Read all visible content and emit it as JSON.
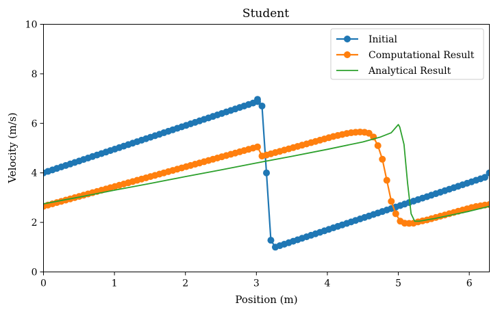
{
  "chart_data": {
    "type": "line",
    "title": "Student",
    "xlabel": "Position (m)",
    "ylabel": "Velocity (m/s)",
    "xlim": [
      0,
      6.2832
    ],
    "ylim": [
      0,
      10
    ],
    "xticks": [
      "0",
      "1",
      "2",
      "3",
      "4",
      "5",
      "6"
    ],
    "yticks": [
      "0",
      "2",
      "4",
      "6",
      "8",
      "10"
    ],
    "legend_position": "top-right",
    "grid": false,
    "series": [
      {
        "name": "Initial",
        "color": "#1f77b4",
        "marker": "circle",
        "description": "sawtooth: linear 4 to 7 over x in [0, 3.05], sharp drop near x=3.1-3.25 to 1, linear 1 to 4 over x in [3.25, 6.28]",
        "points": [
          [
            0,
            4.0
          ],
          [
            0.063,
            4.06
          ],
          [
            0.126,
            4.12
          ],
          [
            0.188,
            4.18
          ],
          [
            0.251,
            4.24
          ],
          [
            0.314,
            4.3
          ],
          [
            0.377,
            4.36
          ],
          [
            0.44,
            4.42
          ],
          [
            0.503,
            4.48
          ],
          [
            0.565,
            4.54
          ],
          [
            0.628,
            4.6
          ],
          [
            0.691,
            4.66
          ],
          [
            0.754,
            4.72
          ],
          [
            0.817,
            4.78
          ],
          [
            0.88,
            4.84
          ],
          [
            0.942,
            4.9
          ],
          [
            1.005,
            4.96
          ],
          [
            1.068,
            5.02
          ],
          [
            1.131,
            5.08
          ],
          [
            1.194,
            5.14
          ],
          [
            1.257,
            5.2
          ],
          [
            1.319,
            5.26
          ],
          [
            1.382,
            5.32
          ],
          [
            1.445,
            5.38
          ],
          [
            1.508,
            5.44
          ],
          [
            1.571,
            5.5
          ],
          [
            1.634,
            5.56
          ],
          [
            1.696,
            5.62
          ],
          [
            1.759,
            5.68
          ],
          [
            1.822,
            5.74
          ],
          [
            1.885,
            5.8
          ],
          [
            1.948,
            5.86
          ],
          [
            2.011,
            5.92
          ],
          [
            2.073,
            5.98
          ],
          [
            2.136,
            6.04
          ],
          [
            2.199,
            6.1
          ],
          [
            2.262,
            6.16
          ],
          [
            2.325,
            6.22
          ],
          [
            2.388,
            6.28
          ],
          [
            2.45,
            6.34
          ],
          [
            2.513,
            6.4
          ],
          [
            2.576,
            6.46
          ],
          [
            2.639,
            6.52
          ],
          [
            2.702,
            6.58
          ],
          [
            2.765,
            6.64
          ],
          [
            2.827,
            6.7
          ],
          [
            2.89,
            6.76
          ],
          [
            2.953,
            6.82
          ],
          [
            3.016,
            6.88
          ],
          [
            3.016,
            6.97
          ],
          [
            3.079,
            6.7
          ],
          [
            3.142,
            4.0
          ],
          [
            3.204,
            1.28
          ],
          [
            3.267,
            1.0
          ],
          [
            3.33,
            1.06
          ],
          [
            3.393,
            1.12
          ],
          [
            3.456,
            1.18
          ],
          [
            3.519,
            1.24
          ],
          [
            3.581,
            1.3
          ],
          [
            3.644,
            1.36
          ],
          [
            3.707,
            1.42
          ],
          [
            3.77,
            1.48
          ],
          [
            3.833,
            1.54
          ],
          [
            3.896,
            1.6
          ],
          [
            3.958,
            1.66
          ],
          [
            4.021,
            1.72
          ],
          [
            4.084,
            1.78
          ],
          [
            4.147,
            1.84
          ],
          [
            4.21,
            1.9
          ],
          [
            4.273,
            1.96
          ],
          [
            4.335,
            2.02
          ],
          [
            4.398,
            2.08
          ],
          [
            4.461,
            2.14
          ],
          [
            4.524,
            2.2
          ],
          [
            4.587,
            2.26
          ],
          [
            4.65,
            2.32
          ],
          [
            4.712,
            2.38
          ],
          [
            4.775,
            2.44
          ],
          [
            4.838,
            2.5
          ],
          [
            4.901,
            2.56
          ],
          [
            4.964,
            2.62
          ],
          [
            5.027,
            2.68
          ],
          [
            5.089,
            2.74
          ],
          [
            5.152,
            2.8
          ],
          [
            5.215,
            2.86
          ],
          [
            5.278,
            2.92
          ],
          [
            5.341,
            2.98
          ],
          [
            5.404,
            3.04
          ],
          [
            5.466,
            3.1
          ],
          [
            5.529,
            3.16
          ],
          [
            5.592,
            3.22
          ],
          [
            5.655,
            3.28
          ],
          [
            5.718,
            3.34
          ],
          [
            5.781,
            3.4
          ],
          [
            5.843,
            3.46
          ],
          [
            5.906,
            3.52
          ],
          [
            5.969,
            3.58
          ],
          [
            6.032,
            3.64
          ],
          [
            6.095,
            3.7
          ],
          [
            6.158,
            3.76
          ],
          [
            6.22,
            3.82
          ],
          [
            6.283,
            4.0
          ]
        ]
      },
      {
        "name": "Computational Result",
        "color": "#ff7f0e",
        "marker": "circle",
        "points": [
          [
            0,
            2.65
          ],
          [
            0.063,
            2.7
          ],
          [
            0.126,
            2.75
          ],
          [
            0.188,
            2.8
          ],
          [
            0.251,
            2.85
          ],
          [
            0.314,
            2.9
          ],
          [
            0.377,
            2.95
          ],
          [
            0.44,
            3.0
          ],
          [
            0.503,
            3.05
          ],
          [
            0.565,
            3.1
          ],
          [
            0.628,
            3.15
          ],
          [
            0.691,
            3.2
          ],
          [
            0.754,
            3.25
          ],
          [
            0.817,
            3.3
          ],
          [
            0.88,
            3.35
          ],
          [
            0.942,
            3.4
          ],
          [
            1.005,
            3.45
          ],
          [
            1.068,
            3.5
          ],
          [
            1.131,
            3.55
          ],
          [
            1.194,
            3.6
          ],
          [
            1.257,
            3.65
          ],
          [
            1.319,
            3.7
          ],
          [
            1.382,
            3.75
          ],
          [
            1.445,
            3.8
          ],
          [
            1.508,
            3.85
          ],
          [
            1.571,
            3.9
          ],
          [
            1.634,
            3.95
          ],
          [
            1.696,
            4.0
          ],
          [
            1.759,
            4.05
          ],
          [
            1.822,
            4.1
          ],
          [
            1.885,
            4.15
          ],
          [
            1.948,
            4.2
          ],
          [
            2.011,
            4.25
          ],
          [
            2.073,
            4.3
          ],
          [
            2.136,
            4.35
          ],
          [
            2.199,
            4.4
          ],
          [
            2.262,
            4.45
          ],
          [
            2.325,
            4.5
          ],
          [
            2.388,
            4.55
          ],
          [
            2.45,
            4.6
          ],
          [
            2.513,
            4.65
          ],
          [
            2.576,
            4.7
          ],
          [
            2.639,
            4.75
          ],
          [
            2.702,
            4.8
          ],
          [
            2.765,
            4.85
          ],
          [
            2.827,
            4.9
          ],
          [
            2.89,
            4.95
          ],
          [
            2.953,
            5.0
          ],
          [
            3.016,
            5.05
          ],
          [
            3.079,
            4.68
          ],
          [
            3.142,
            4.72
          ],
          [
            3.204,
            4.77
          ],
          [
            3.267,
            4.82
          ],
          [
            3.33,
            4.87
          ],
          [
            3.393,
            4.92
          ],
          [
            3.456,
            4.97
          ],
          [
            3.519,
            5.02
          ],
          [
            3.581,
            5.07
          ],
          [
            3.644,
            5.12
          ],
          [
            3.707,
            5.17
          ],
          [
            3.77,
            5.22
          ],
          [
            3.833,
            5.27
          ],
          [
            3.896,
            5.32
          ],
          [
            3.958,
            5.37
          ],
          [
            4.021,
            5.42
          ],
          [
            4.084,
            5.47
          ],
          [
            4.147,
            5.51
          ],
          [
            4.21,
            5.55
          ],
          [
            4.273,
            5.59
          ],
          [
            4.335,
            5.62
          ],
          [
            4.398,
            5.64
          ],
          [
            4.461,
            5.65
          ],
          [
            4.524,
            5.64
          ],
          [
            4.587,
            5.6
          ],
          [
            4.65,
            5.45
          ],
          [
            4.712,
            5.1
          ],
          [
            4.775,
            4.55
          ],
          [
            4.838,
            3.7
          ],
          [
            4.901,
            2.85
          ],
          [
            4.964,
            2.35
          ],
          [
            5.027,
            2.05
          ],
          [
            5.089,
            1.97
          ],
          [
            5.152,
            1.96
          ],
          [
            5.215,
            1.97
          ],
          [
            5.278,
            2.02
          ],
          [
            5.341,
            2.06
          ],
          [
            5.404,
            2.1
          ],
          [
            5.466,
            2.15
          ],
          [
            5.529,
            2.2
          ],
          [
            5.592,
            2.25
          ],
          [
            5.655,
            2.3
          ],
          [
            5.718,
            2.35
          ],
          [
            5.781,
            2.4
          ],
          [
            5.843,
            2.45
          ],
          [
            5.906,
            2.5
          ],
          [
            5.969,
            2.55
          ],
          [
            6.032,
            2.6
          ],
          [
            6.095,
            2.64
          ],
          [
            6.158,
            2.67
          ],
          [
            6.22,
            2.7
          ],
          [
            6.283,
            2.72
          ]
        ]
      },
      {
        "name": "Analytical Result",
        "color": "#2ca02c",
        "marker": "none",
        "points": [
          [
            0,
            2.75
          ],
          [
            0.5,
            3.02
          ],
          [
            1.0,
            3.3
          ],
          [
            1.5,
            3.57
          ],
          [
            2.0,
            3.85
          ],
          [
            2.5,
            4.12
          ],
          [
            3.0,
            4.4
          ],
          [
            3.5,
            4.67
          ],
          [
            4.0,
            4.95
          ],
          [
            4.5,
            5.25
          ],
          [
            4.75,
            5.45
          ],
          [
            4.9,
            5.62
          ],
          [
            5.0,
            5.95
          ],
          [
            5.02,
            5.85
          ],
          [
            5.08,
            5.15
          ],
          [
            5.13,
            3.6
          ],
          [
            5.18,
            2.35
          ],
          [
            5.23,
            2.05
          ],
          [
            5.3,
            2.05
          ],
          [
            5.5,
            2.15
          ],
          [
            5.75,
            2.3
          ],
          [
            6.0,
            2.45
          ],
          [
            6.2832,
            2.65
          ]
        ]
      }
    ]
  }
}
